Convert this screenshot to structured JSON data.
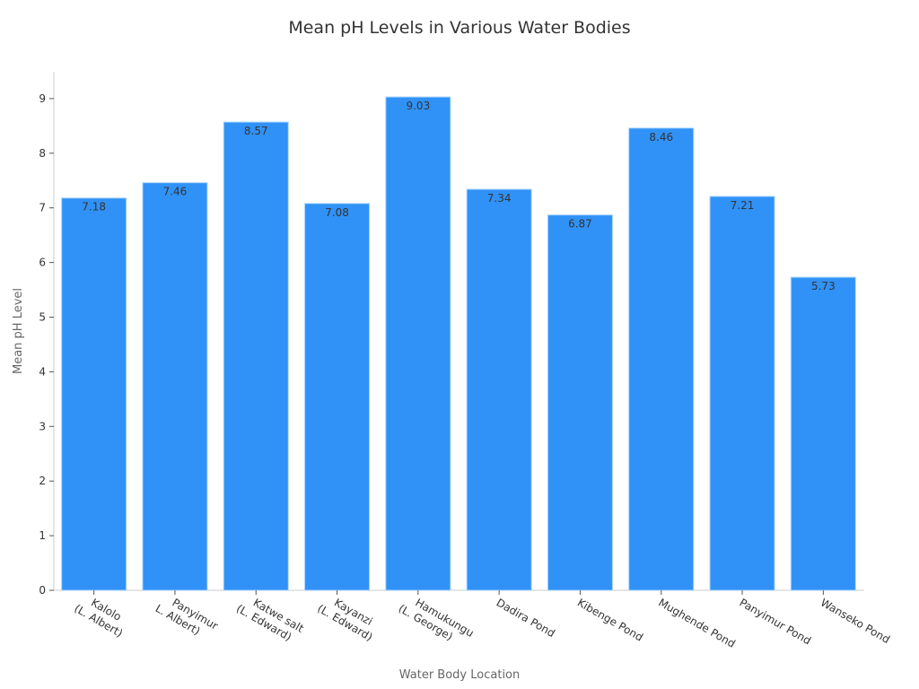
{
  "chart_data": {
    "type": "bar",
    "title": "Mean pH Levels in Various Water Bodies",
    "xlabel": "Water Body Location",
    "ylabel": "Mean pH Level",
    "categories": [
      "Kalolo\n(L. Albert)",
      "Panyimur\nL. Albert)",
      "Katwe salt\n(L. Edward)",
      "Kayanzi\n(L. Edward)",
      "Hamukungu\n(L. George)",
      "Dadira Pond",
      "Kibenge Pond",
      "Mughende Pond",
      "Panyimur Pond",
      "Wanseko Pond"
    ],
    "values": [
      7.18,
      7.46,
      8.57,
      7.08,
      9.03,
      7.34,
      6.87,
      8.46,
      7.21,
      5.73
    ],
    "value_labels": [
      "7.18",
      "7.46",
      "8.57",
      "7.08",
      "9.03",
      "7.34",
      "6.87",
      "8.46",
      "7.21",
      "5.73"
    ],
    "yticks": [
      0,
      1,
      2,
      3,
      4,
      5,
      6,
      7,
      8,
      9
    ],
    "ylim": [
      0,
      9.5
    ],
    "grid": false,
    "legend": null,
    "colors": {
      "bar": "#3092f7",
      "bar_edge": "#a9d3fb",
      "axis": "#cccccc",
      "text": "#333333",
      "axis_title": "#666666"
    }
  }
}
